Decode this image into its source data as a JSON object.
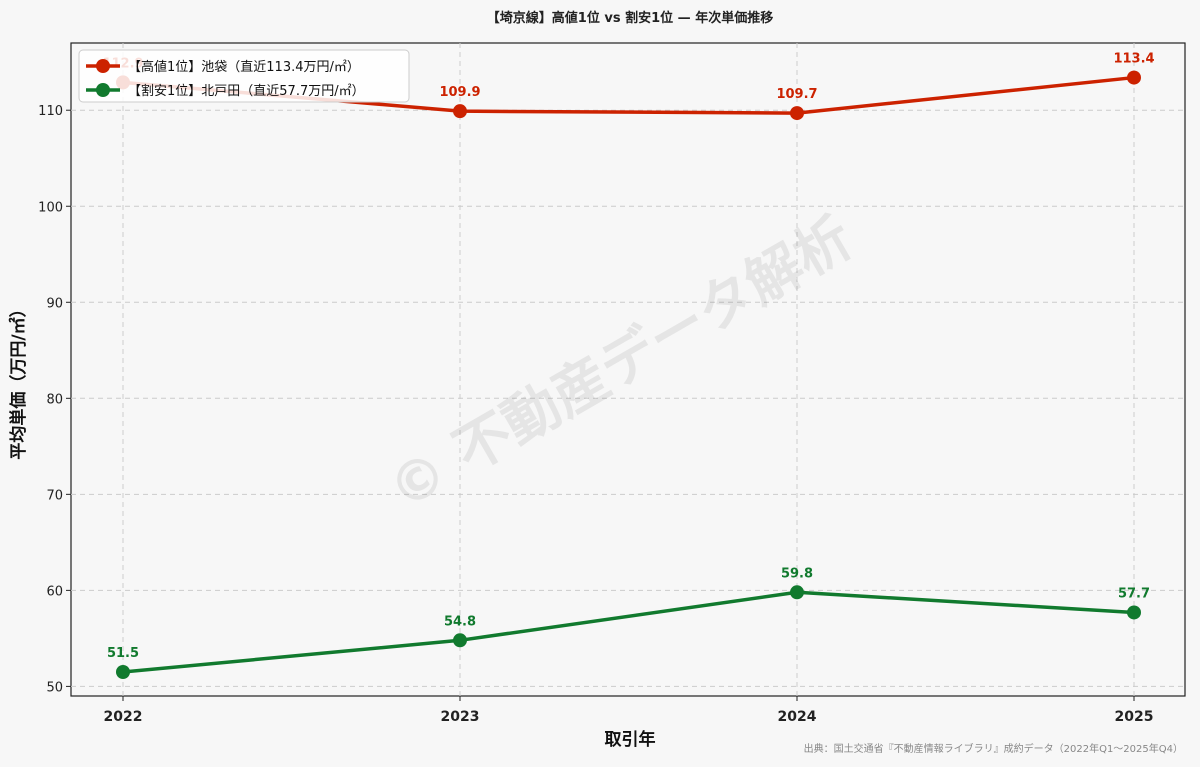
{
  "chart_data": {
    "type": "line",
    "title": "【埼京線】高値1位 vs 割安1位 — 年次単価推移",
    "xlabel": "取引年",
    "ylabel": "平均単価（万円/㎡）",
    "categories": [
      "2022",
      "2023",
      "2024",
      "2025"
    ],
    "y_ticks": [
      50,
      60,
      70,
      80,
      90,
      100,
      110
    ],
    "ylim": [
      49,
      117
    ],
    "grid": true,
    "legend_position": "top-left",
    "series": [
      {
        "name": "【高値1位】池袋（直近113.4万円/㎡）",
        "color": "#cc2200",
        "values": [
          112.9,
          109.9,
          109.7,
          113.4
        ],
        "labels": [
          "112.9",
          "109.9",
          "109.7",
          "113.4"
        ]
      },
      {
        "name": "【割安1位】北戸田（直近57.7万円/㎡）",
        "color": "#117a2e",
        "values": [
          51.5,
          54.8,
          59.8,
          57.7
        ],
        "labels": [
          "51.5",
          "54.8",
          "59.8",
          "57.7"
        ]
      }
    ],
    "watermark": "© 不動産データ解析",
    "source": "出典：国土交通省『不動産情報ライブラリ』成約データ（2022年Q1〜2025年Q4）"
  }
}
